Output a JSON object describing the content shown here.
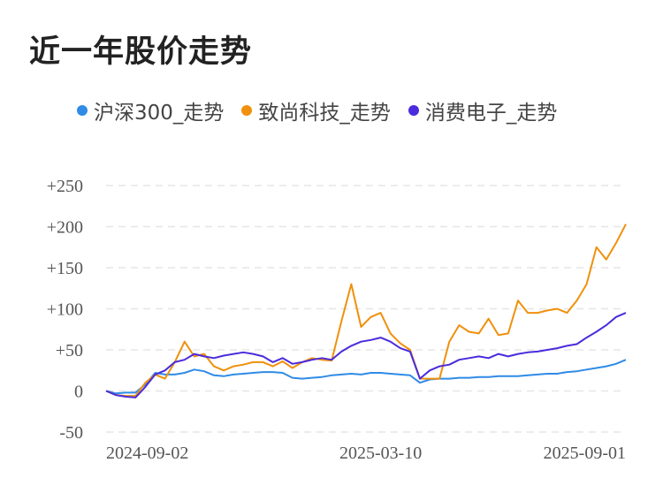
{
  "title": "近一年股价走势",
  "colors": {
    "hs300": "#2f8be6",
    "zskj": "#f0900c",
    "xfdz": "#4b2bdc",
    "grid": "#e6e6e6"
  },
  "chart_data": {
    "type": "line",
    "title": "近一年股价走势",
    "xlabel": "",
    "ylabel": "",
    "ylim": [
      -50,
      250
    ],
    "grid": true,
    "legend_placement": "top",
    "y_ticks": [
      "+250",
      "+200",
      "+150",
      "+100",
      "+50",
      "0",
      "-50"
    ],
    "y_tick_values": [
      250,
      200,
      150,
      100,
      50,
      0,
      -50
    ],
    "x_ticks": [
      "2024-09-02",
      "2025-03-10",
      "2025-09-01"
    ],
    "x": [
      "2024-08-26",
      "2024-09-02",
      "2024-09-09",
      "2024-09-16",
      "2024-09-23",
      "2024-09-30",
      "2024-10-07",
      "2024-10-14",
      "2024-10-21",
      "2024-10-28",
      "2024-11-04",
      "2024-11-11",
      "2024-11-18",
      "2024-11-25",
      "2024-12-02",
      "2024-12-09",
      "2024-12-16",
      "2024-12-23",
      "2024-12-30",
      "2025-01-06",
      "2025-01-13",
      "2025-01-20",
      "2025-01-27",
      "2025-02-03",
      "2025-02-10",
      "2025-02-17",
      "2025-02-24",
      "2025-03-03",
      "2025-03-10",
      "2025-03-17",
      "2025-03-24",
      "2025-03-31",
      "2025-04-07",
      "2025-04-14",
      "2025-04-21",
      "2025-04-28",
      "2025-05-05",
      "2025-05-12",
      "2025-05-19",
      "2025-05-26",
      "2025-06-02",
      "2025-06-09",
      "2025-06-16",
      "2025-06-23",
      "2025-06-30",
      "2025-07-07",
      "2025-07-14",
      "2025-07-21",
      "2025-07-28",
      "2025-08-04",
      "2025-08-11",
      "2025-08-18",
      "2025-08-25",
      "2025-09-01"
    ],
    "series": [
      {
        "name": "沪深300_走势",
        "color_key": "hs300",
        "values": [
          0,
          -3,
          -2,
          -2,
          8,
          22,
          20,
          20,
          22,
          26,
          24,
          19,
          18,
          20,
          21,
          22,
          23,
          23,
          22,
          16,
          15,
          16,
          17,
          19,
          20,
          21,
          20,
          22,
          22,
          21,
          20,
          19,
          10,
          14,
          15,
          15,
          16,
          16,
          17,
          17,
          18,
          18,
          18,
          19,
          20,
          21,
          21,
          23,
          24,
          26,
          28,
          30,
          33,
          38
        ]
      },
      {
        "name": "致尚科技_走势",
        "color_key": "zskj",
        "values": [
          0,
          -5,
          -6,
          -6,
          10,
          20,
          15,
          35,
          60,
          42,
          45,
          30,
          25,
          30,
          32,
          35,
          35,
          30,
          36,
          28,
          35,
          40,
          38,
          37,
          85,
          130,
          78,
          90,
          95,
          70,
          58,
          50,
          15,
          15,
          15,
          60,
          80,
          72,
          70,
          88,
          68,
          70,
          110,
          95,
          95,
          98,
          100,
          95,
          110,
          130,
          175,
          160,
          180,
          203
        ]
      },
      {
        "name": "消费电子_走势",
        "color_key": "xfdz",
        "values": [
          0,
          -5,
          -7,
          -8,
          5,
          20,
          25,
          35,
          38,
          45,
          42,
          40,
          43,
          45,
          47,
          45,
          42,
          35,
          40,
          33,
          35,
          38,
          40,
          38,
          48,
          55,
          60,
          62,
          65,
          60,
          52,
          48,
          15,
          25,
          30,
          32,
          38,
          40,
          42,
          40,
          45,
          42,
          45,
          47,
          48,
          50,
          52,
          55,
          57,
          65,
          72,
          80,
          90,
          95
        ]
      }
    ]
  }
}
